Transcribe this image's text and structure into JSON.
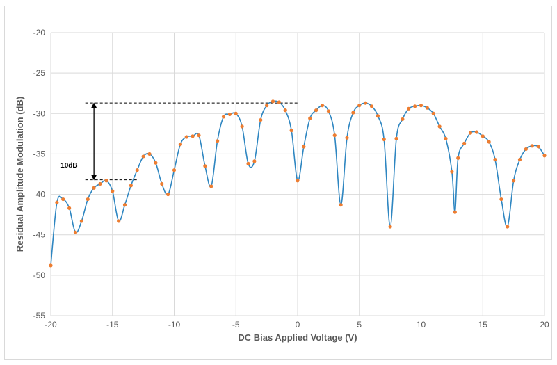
{
  "chart_data": {
    "type": "line",
    "title": "",
    "xlabel": "DC Bias Applied Voltage (V)",
    "ylabel": "Residual Amplitude Modulation (dB)",
    "xlim": [
      -20,
      20
    ],
    "ylim": [
      -55,
      -20
    ],
    "x_ticks": [
      "-20",
      "-15",
      "-10",
      "-5",
      "0",
      "5",
      "10",
      "15",
      "20"
    ],
    "y_ticks": [
      "-20",
      "-25",
      "-30",
      "-35",
      "-40",
      "-45",
      "-50",
      "-55"
    ],
    "grid": "vertical and horizontal, light gray",
    "line_color": "#2e86c1",
    "marker_color": "#ed7d31",
    "annotation": {
      "text": "10dB",
      "upper_level": -28.7,
      "lower_level": -38.2,
      "arrow_x": -16.5
    },
    "series": [
      {
        "points": [
          [
            -20,
            -48.8
          ],
          [
            -19.5,
            -41.0
          ],
          [
            -19.0,
            -40.6
          ],
          [
            -18.5,
            -41.7
          ],
          [
            -18.0,
            -44.7
          ],
          [
            -17.5,
            -43.3
          ],
          [
            -17.0,
            -40.6
          ],
          [
            -16.5,
            -39.2
          ],
          [
            -16.0,
            -38.7
          ],
          [
            -15.5,
            -38.3
          ],
          [
            -15.0,
            -39.6
          ],
          [
            -14.5,
            -43.3
          ],
          [
            -14.0,
            -41.3
          ],
          [
            -13.5,
            -38.9
          ],
          [
            -13.0,
            -37.0
          ],
          [
            -12.5,
            -35.3
          ],
          [
            -12.0,
            -35.0
          ],
          [
            -11.5,
            -36.1
          ],
          [
            -11.0,
            -38.7
          ],
          [
            -10.5,
            -40.0
          ],
          [
            -10.0,
            -37.0
          ],
          [
            -9.5,
            -33.8
          ],
          [
            -9.0,
            -32.9
          ],
          [
            -8.5,
            -32.8
          ],
          [
            -8.0,
            -32.7
          ],
          [
            -7.5,
            -36.5
          ],
          [
            -7.0,
            -39.0
          ],
          [
            -6.5,
            -33.4
          ],
          [
            -6.0,
            -30.4
          ],
          [
            -5.5,
            -30.1
          ],
          [
            -5.0,
            -30.0
          ],
          [
            -4.5,
            -31.6
          ],
          [
            -4.0,
            -36.2
          ],
          [
            -3.5,
            -35.9
          ],
          [
            -3.0,
            -30.8
          ],
          [
            -2.5,
            -29.0
          ],
          [
            -2.0,
            -28.5
          ],
          [
            -1.5,
            -28.6
          ],
          [
            -1.0,
            -29.6
          ],
          [
            -0.5,
            -32.1
          ],
          [
            0.0,
            -38.3
          ],
          [
            0.5,
            -34.1
          ],
          [
            1.0,
            -30.6
          ],
          [
            1.5,
            -29.6
          ],
          [
            2.0,
            -29.0
          ],
          [
            2.5,
            -29.7
          ],
          [
            3.0,
            -32.7
          ],
          [
            3.5,
            -41.3
          ],
          [
            4.0,
            -33.0
          ],
          [
            4.5,
            -29.9
          ],
          [
            5.0,
            -29.0
          ],
          [
            5.5,
            -28.7
          ],
          [
            6.0,
            -29.1
          ],
          [
            6.5,
            -30.3
          ],
          [
            7.0,
            -33.2
          ],
          [
            7.5,
            -44.0
          ],
          [
            8.0,
            -33.1
          ],
          [
            8.5,
            -30.7
          ],
          [
            9.0,
            -29.4
          ],
          [
            9.5,
            -29.1
          ],
          [
            10.0,
            -29.0
          ],
          [
            10.5,
            -29.3
          ],
          [
            11.0,
            -30.0
          ],
          [
            11.5,
            -31.6
          ],
          [
            12.0,
            -33.1
          ],
          [
            12.5,
            -37.2
          ],
          [
            12.75,
            -42.2
          ],
          [
            13.0,
            -35.5
          ],
          [
            13.5,
            -33.7
          ],
          [
            14.0,
            -32.4
          ],
          [
            14.5,
            -32.3
          ],
          [
            15.0,
            -32.8
          ],
          [
            15.5,
            -33.5
          ],
          [
            16.0,
            -35.7
          ],
          [
            16.5,
            -40.6
          ],
          [
            17.0,
            -44.0
          ],
          [
            17.5,
            -38.3
          ],
          [
            18.0,
            -35.7
          ],
          [
            18.5,
            -34.4
          ],
          [
            19.0,
            -34.0
          ],
          [
            19.5,
            -34.1
          ],
          [
            20.0,
            -35.2
          ]
        ]
      }
    ]
  }
}
